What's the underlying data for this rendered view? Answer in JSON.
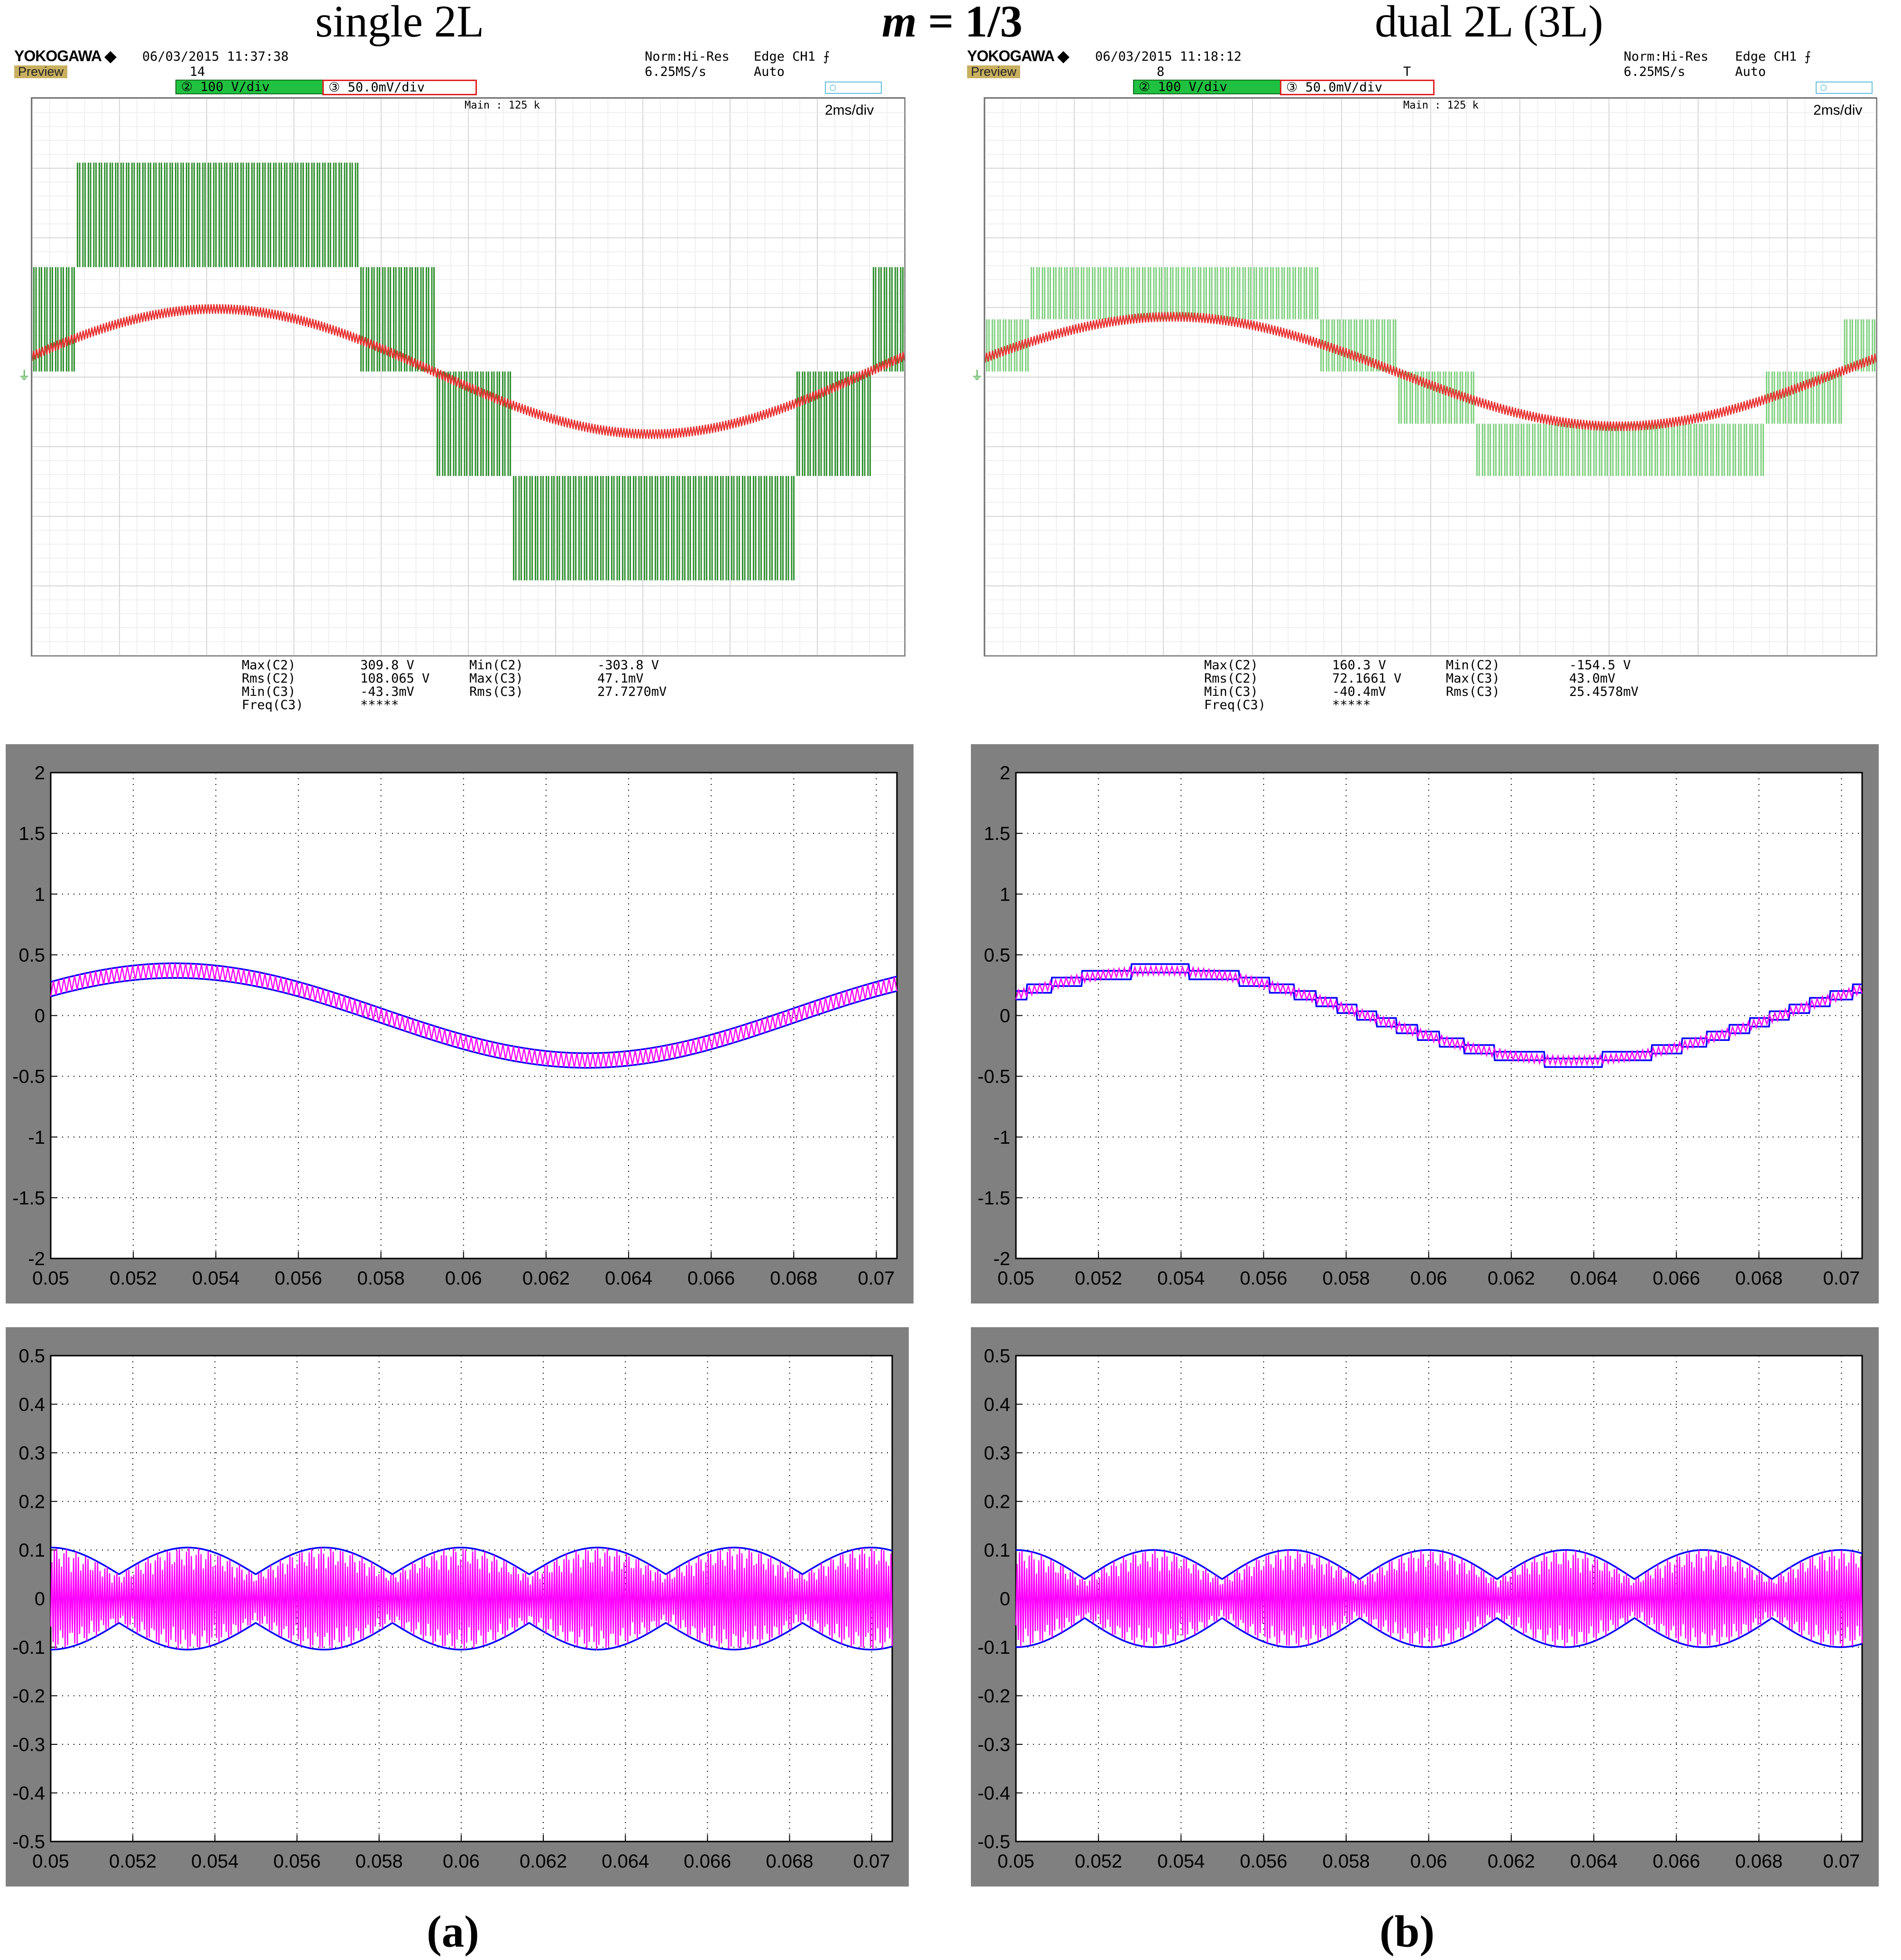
{
  "header": {
    "left": "single 2L",
    "center_var": "m",
    "center_rest": " = 1/3",
    "right": "dual 2L (3L)"
  },
  "scopes": [
    {
      "brand": "YOKOGAWA ◆",
      "datetime": "06/03/2015 11:37:38",
      "count": "14",
      "preview": "Preview",
      "mode": "Norm:Hi-Res",
      "rate": "6.25MS/s",
      "trigger": "Edge CH1 ⨍",
      "trigger_mode": "Auto",
      "ch2": "② 100 V/div",
      "ch3": "③ 50.0mV/div",
      "main": "Main : 125 k",
      "timebase": "2ms/div",
      "cursor_marker": "",
      "measurements": [
        [
          "Max(C2)",
          "309.8 V",
          "Min(C2)",
          "-303.8 V"
        ],
        [
          "Rms(C2)",
          "108.065 V",
          "Max(C3)",
          "47.1mV"
        ],
        [
          "Min(C3)",
          "-43.3mV",
          "Rms(C3)",
          "27.7270mV"
        ],
        [
          "Freq(C3)",
          "*****",
          "",
          ""
        ]
      ],
      "trace": {
        "levels_V": [
          -300,
          -150,
          0,
          150,
          300
        ],
        "fundamental_peak_V": 150,
        "ripple_peak_mV": 40,
        "switching": "two-level"
      }
    },
    {
      "brand": "YOKOGAWA ◆",
      "datetime": "06/03/2015 11:18:12",
      "count": "8",
      "preview": "Preview",
      "mode": "Norm:Hi-Res",
      "rate": "6.25MS/s",
      "trigger": "Edge CH1 ⨍",
      "trigger_mode": "Auto",
      "ch2": "② 100 V/div",
      "ch3": "③ 50.0mV/div",
      "main": "Main : 125 k",
      "timebase": "2ms/div",
      "cursor_marker": "T",
      "measurements": [
        [
          "Max(C2)",
          "160.3 V",
          "Min(C2)",
          "-154.5 V"
        ],
        [
          "Rms(C2)",
          "72.1661 V",
          "Max(C3)",
          "43.0mV"
        ],
        [
          "Min(C3)",
          "-40.4mV",
          "Rms(C3)",
          "25.4578mV"
        ],
        [
          "Freq(C3)",
          "*****",
          "",
          ""
        ]
      ],
      "trace": {
        "levels_V": [
          -150,
          -75,
          0,
          75,
          150
        ],
        "fundamental_peak_V": 75,
        "ripple_peak_mV": 35,
        "switching": "three-level"
      }
    }
  ],
  "chart_data": [
    {
      "type": "line",
      "title": "",
      "xlabel": "",
      "ylabel": "",
      "xlim": [
        0.05,
        0.0705
      ],
      "ylim": [
        -2,
        2
      ],
      "grid": true,
      "xticks": [
        "0.05",
        "0.052",
        "0.054",
        "0.056",
        "0.058",
        "0.06",
        "0.062",
        "0.064",
        "0.066",
        "0.068",
        "0.07"
      ],
      "yticks": [
        "2",
        "1.5",
        "1",
        "0.5",
        "0",
        "-0.5",
        "-1",
        "-1.5",
        "-2"
      ],
      "series": [
        {
          "color": "#0000ff",
          "style": "envelope",
          "center_amplitude": 0.37,
          "band_halfwidth": 0.06,
          "period": 0.02,
          "peak_x": 0.053
        },
        {
          "color": "#ff00ff",
          "style": "ripple",
          "center_amplitude": 0.37,
          "ripple_amplitude": 0.06,
          "period": 0.02,
          "peak_x": 0.053
        }
      ]
    },
    {
      "type": "line",
      "title": "",
      "xlabel": "",
      "ylabel": "",
      "xlim": [
        0.05,
        0.0705
      ],
      "ylim": [
        -2,
        2
      ],
      "grid": true,
      "xticks": [
        "0.05",
        "0.052",
        "0.054",
        "0.056",
        "0.058",
        "0.06",
        "0.062",
        "0.064",
        "0.066",
        "0.068",
        "0.07"
      ],
      "yticks": [
        "2",
        "1.5",
        "1",
        "0.5",
        "0",
        "-0.5",
        "-1",
        "-1.5",
        "-2"
      ],
      "series": [
        {
          "color": "#0000ff",
          "style": "envelope",
          "center_amplitude": 0.37,
          "band_halfwidth": 0.035,
          "period": 0.02,
          "peak_x": 0.0535
        },
        {
          "color": "#ff00ff",
          "style": "ripple",
          "center_amplitude": 0.37,
          "ripple_amplitude": 0.035,
          "period": 0.02,
          "peak_x": 0.0535
        }
      ]
    },
    {
      "type": "line",
      "title": "",
      "xlabel": "",
      "ylabel": "",
      "xlim": [
        0.05,
        0.0705
      ],
      "ylim": [
        -0.5,
        0.5
      ],
      "grid": true,
      "xticks": [
        "0.05",
        "0.052",
        "0.054",
        "0.056",
        "0.058",
        "0.06",
        "0.062",
        "0.064",
        "0.066",
        "0.068",
        "0.07"
      ],
      "yticks": [
        "0.5",
        "0.4",
        "0.3",
        "0.2",
        "0.1",
        "0",
        "-0.1",
        "-0.2",
        "-0.3",
        "-0.4",
        "-0.5"
      ],
      "series": [
        {
          "color": "#0000ff",
          "style": "ripple-envelope",
          "max": 0.105,
          "min": 0.05,
          "period": 0.00333
        },
        {
          "color": "#ff00ff",
          "style": "ripple-error",
          "max": 0.12
        }
      ]
    },
    {
      "type": "line",
      "title": "",
      "xlabel": "",
      "ylabel": "",
      "xlim": [
        0.05,
        0.0705
      ],
      "ylim": [
        -0.5,
        0.5
      ],
      "grid": true,
      "xticks": [
        "0.05",
        "0.052",
        "0.054",
        "0.056",
        "0.058",
        "0.06",
        "0.062",
        "0.064",
        "0.066",
        "0.068",
        "0.07"
      ],
      "yticks": [
        "0.5",
        "0.4",
        "0.3",
        "0.2",
        "0.1",
        "0",
        "-0.1",
        "-0.2",
        "-0.3",
        "-0.4",
        "-0.5"
      ],
      "series": [
        {
          "color": "#0000ff",
          "style": "ripple-envelope",
          "max": 0.1,
          "min": 0.04,
          "period": 0.00333
        },
        {
          "color": "#ff00ff",
          "style": "ripple-error",
          "max": 0.1
        }
      ]
    }
  ],
  "captions": [
    "(a)",
    "(b)"
  ]
}
